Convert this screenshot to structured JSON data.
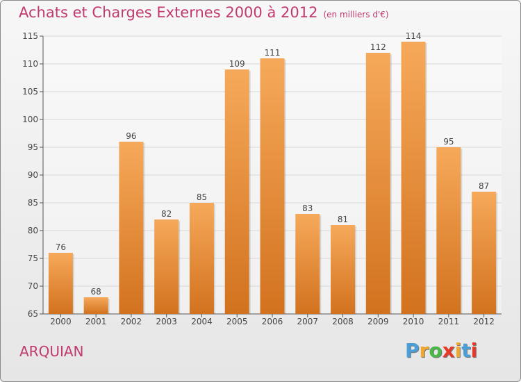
{
  "title": "Achats et Charges Externes 2000 à 2012",
  "unit": "(en milliers d'€)",
  "commune": "ARQUIAN",
  "logo": {
    "text": "Proxiti",
    "letters": [
      "P",
      "r",
      "o",
      "x",
      "i",
      "t",
      "i"
    ],
    "colors": [
      "#4a9fd8",
      "#f0a830",
      "#4ab848",
      "#e83828",
      "#f0a830",
      "#4a9fd8",
      "#e83828"
    ]
  },
  "colors": {
    "bar_top": "#f6a95a",
    "bar_bottom": "#d2721e",
    "title": "#c03a6f",
    "grid": "#d8d8d8"
  },
  "chart_data": {
    "type": "bar",
    "categories": [
      "2000",
      "2001",
      "2002",
      "2003",
      "2004",
      "2005",
      "2006",
      "2007",
      "2008",
      "2009",
      "2010",
      "2011",
      "2012"
    ],
    "values": [
      76,
      68,
      96,
      82,
      85,
      109,
      111,
      83,
      81,
      112,
      114,
      95,
      87
    ],
    "ylim": [
      65,
      115
    ],
    "yticks": [
      65,
      70,
      75,
      80,
      85,
      90,
      95,
      100,
      105,
      110,
      115
    ],
    "grid": true
  }
}
